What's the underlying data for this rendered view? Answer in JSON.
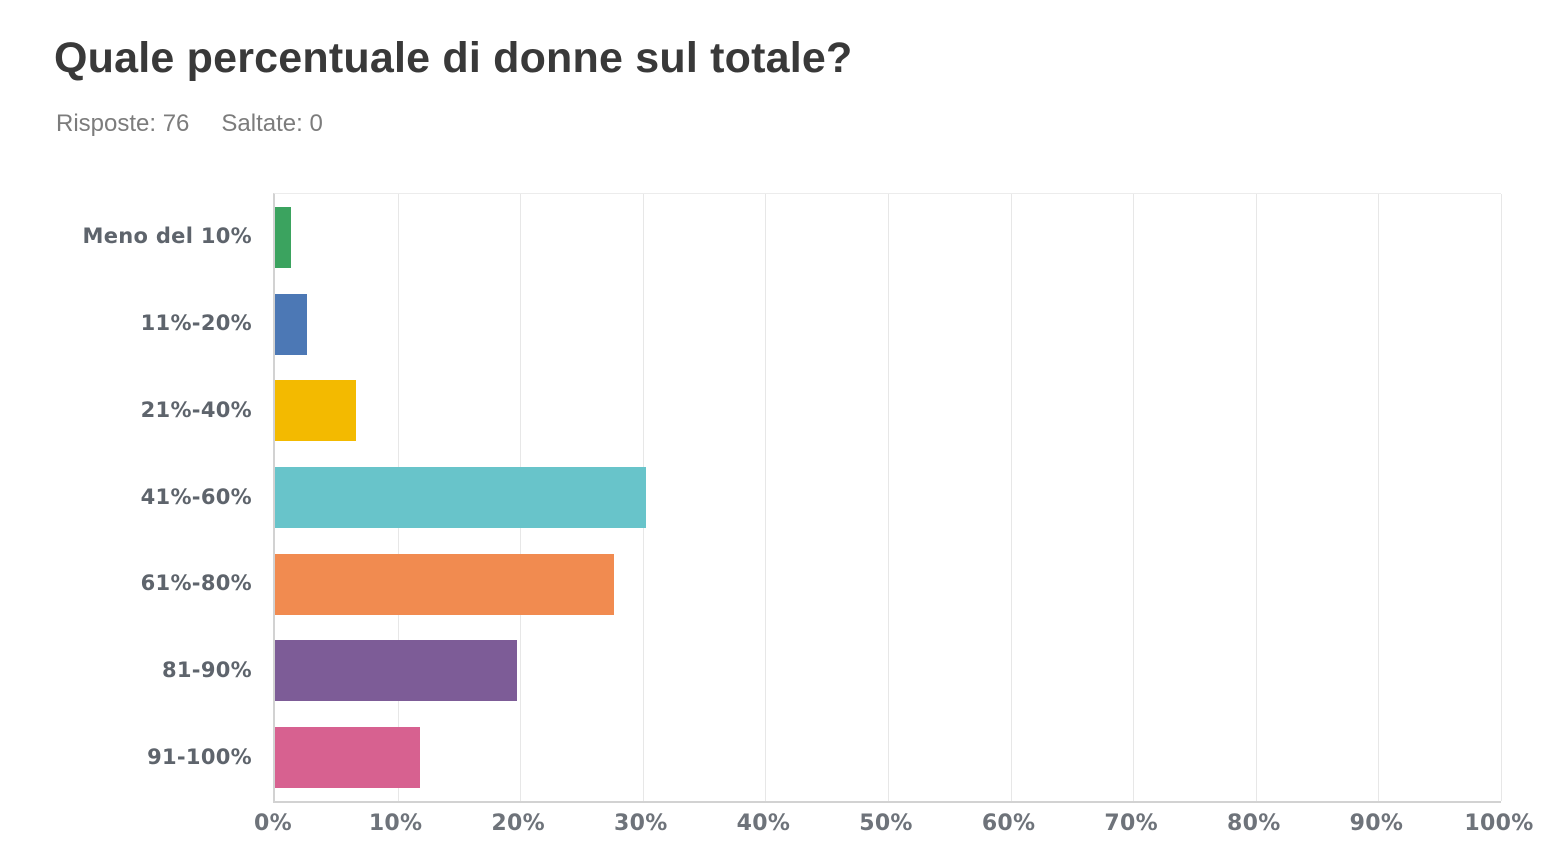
{
  "header": {
    "title": "Quale percentuale di donne sul totale?",
    "responses": "Risposte: 76",
    "skipped": "Saltate: 0"
  },
  "chart_data": {
    "type": "bar",
    "orientation": "horizontal",
    "title": "Quale percentuale di donne sul totale?",
    "categories": [
      "Meno del 10%",
      "11%-20%",
      "21%-40%",
      "41%-60%",
      "61%-80%",
      "81-90%",
      "91-100%"
    ],
    "values": [
      1.32,
      2.63,
      6.58,
      30.26,
      27.63,
      19.74,
      11.84
    ],
    "unit": "%",
    "colors": [
      "#3ba35f",
      "#4c78b5",
      "#f3ba00",
      "#68c4ca",
      "#f18b50",
      "#7d5c97",
      "#d76190"
    ],
    "xlim": [
      0,
      100
    ],
    "x_ticks": [
      "0%",
      "10%",
      "20%",
      "30%",
      "40%",
      "50%",
      "60%",
      "70%",
      "80%",
      "90%",
      "100%"
    ],
    "grid": true,
    "legend": false,
    "grid_color": "#e7e7e7",
    "axis_color": "#d2d2d2",
    "label_color": "#5e646c",
    "tick_color": "#6e737a"
  }
}
